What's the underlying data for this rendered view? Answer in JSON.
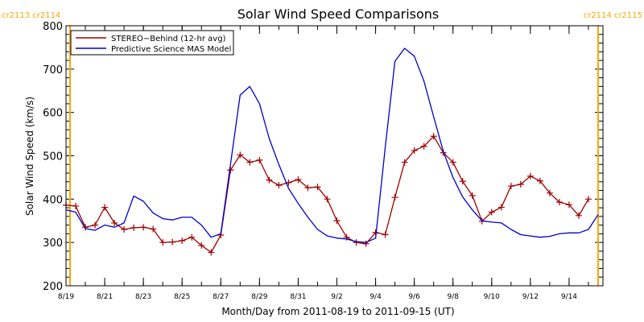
{
  "chart_data": {
    "type": "line",
    "title": "Solar Wind Speed Comparisons",
    "xlabel": "Month/Day from 2011-08-19 to 2011-09-15 (UT)",
    "ylabel": "Solar Wind Speed (km/s)",
    "x_range": [
      "2011-08-19",
      "2011-09-15"
    ],
    "ylim": [
      200,
      800
    ],
    "y_ticks": [
      200,
      300,
      400,
      500,
      600,
      700,
      800
    ],
    "x_ticks": [
      {
        "date": "2011-08-19",
        "label": "8/19"
      },
      {
        "date": "2011-08-21",
        "label": "8/21"
      },
      {
        "date": "2011-08-23",
        "label": "8/23"
      },
      {
        "date": "2011-08-25",
        "label": "8/25"
      },
      {
        "date": "2011-08-27",
        "label": "8/27"
      },
      {
        "date": "2011-08-29",
        "label": "8/29"
      },
      {
        "date": "2011-08-31",
        "label": "8/31"
      },
      {
        "date": "2011-09-02",
        "label": "9/2"
      },
      {
        "date": "2011-09-04",
        "label": "9/4"
      },
      {
        "date": "2011-09-06",
        "label": "9/6"
      },
      {
        "date": "2011-09-08",
        "label": "9/8"
      },
      {
        "date": "2011-09-10",
        "label": "9/10"
      },
      {
        "date": "2011-09-12",
        "label": "9/12"
      },
      {
        "date": "2011-09-14",
        "label": "9/14"
      }
    ],
    "grid": false,
    "legend_position": "top-left",
    "carrington_markers": [
      {
        "date": "2011-08-19T05:00",
        "label": "cr2113 cr2114",
        "side": "left"
      },
      {
        "date": "2011-09-15T12:00",
        "label": "cr2114 cr2115",
        "side": "right"
      }
    ],
    "marker_color": "#ffa500",
    "series": [
      {
        "name": "STEREO−Behind (12-hr avg)",
        "color": "#a00000",
        "marker": "plus",
        "x": [
          "2011-08-19T00:00",
          "2011-08-19T12:00",
          "2011-08-20T00:00",
          "2011-08-20T12:00",
          "2011-08-21T00:00",
          "2011-08-21T12:00",
          "2011-08-22T00:00",
          "2011-08-22T12:00",
          "2011-08-23T00:00",
          "2011-08-23T12:00",
          "2011-08-24T00:00",
          "2011-08-24T12:00",
          "2011-08-25T00:00",
          "2011-08-25T12:00",
          "2011-08-26T00:00",
          "2011-08-26T12:00",
          "2011-08-27T00:00",
          "2011-08-27T12:00",
          "2011-08-28T00:00",
          "2011-08-28T12:00",
          "2011-08-29T00:00",
          "2011-08-29T12:00",
          "2011-08-30T00:00",
          "2011-08-30T12:00",
          "2011-08-31T00:00",
          "2011-08-31T12:00",
          "2011-09-01T00:00",
          "2011-09-01T12:00",
          "2011-09-02T00:00",
          "2011-09-02T12:00",
          "2011-09-03T00:00",
          "2011-09-03T12:00",
          "2011-09-04T00:00",
          "2011-09-04T12:00",
          "2011-09-05T00:00",
          "2011-09-05T12:00",
          "2011-09-06T00:00",
          "2011-09-06T12:00",
          "2011-09-07T00:00",
          "2011-09-07T12:00",
          "2011-09-08T00:00",
          "2011-09-08T12:00",
          "2011-09-09T00:00",
          "2011-09-09T12:00",
          "2011-09-10T00:00",
          "2011-09-10T12:00",
          "2011-09-11T00:00",
          "2011-09-11T12:00",
          "2011-09-12T00:00",
          "2011-09-12T12:00",
          "2011-09-13T00:00",
          "2011-09-13T12:00",
          "2011-09-14T00:00",
          "2011-09-14T12:00",
          "2011-09-15T00:00"
        ],
        "values": [
          386,
          384,
          335,
          340,
          381,
          345,
          330,
          334,
          335,
          331,
          300,
          301,
          304,
          312,
          293,
          277,
          317,
          467,
          502,
          485,
          490,
          444,
          432,
          438,
          445,
          426,
          428,
          400,
          350,
          312,
          300,
          297,
          323,
          318,
          404,
          485,
          512,
          522,
          545,
          507,
          485,
          441,
          408,
          349,
          370,
          381,
          430,
          434,
          453,
          442,
          414,
          393,
          387,
          362,
          400
        ]
      },
      {
        "name": "Predictive Science MAS Model",
        "color": "#0000c8",
        "marker": "none",
        "x": [
          "2011-08-19T00:00",
          "2011-08-19T12:00",
          "2011-08-20T00:00",
          "2011-08-20T12:00",
          "2011-08-21T00:00",
          "2011-08-21T12:00",
          "2011-08-22T00:00",
          "2011-08-22T12:00",
          "2011-08-23T00:00",
          "2011-08-23T12:00",
          "2011-08-24T00:00",
          "2011-08-24T12:00",
          "2011-08-25T00:00",
          "2011-08-25T12:00",
          "2011-08-26T00:00",
          "2011-08-26T12:00",
          "2011-08-27T00:00",
          "2011-08-27T12:00",
          "2011-08-28T00:00",
          "2011-08-28T12:00",
          "2011-08-29T00:00",
          "2011-08-29T12:00",
          "2011-08-30T00:00",
          "2011-08-30T12:00",
          "2011-08-31T00:00",
          "2011-08-31T12:00",
          "2011-09-01T00:00",
          "2011-09-01T12:00",
          "2011-09-02T00:00",
          "2011-09-02T12:00",
          "2011-09-03T00:00",
          "2011-09-03T12:00",
          "2011-09-04T00:00",
          "2011-09-04T12:00",
          "2011-09-05T00:00",
          "2011-09-05T12:00",
          "2011-09-06T00:00",
          "2011-09-06T12:00",
          "2011-09-07T00:00",
          "2011-09-07T12:00",
          "2011-09-08T00:00",
          "2011-09-08T12:00",
          "2011-09-09T00:00",
          "2011-09-09T12:00",
          "2011-09-10T00:00",
          "2011-09-10T12:00",
          "2011-09-11T00:00",
          "2011-09-11T12:00",
          "2011-09-12T00:00",
          "2011-09-12T12:00",
          "2011-09-13T00:00",
          "2011-09-13T12:00",
          "2011-09-14T00:00",
          "2011-09-14T12:00",
          "2011-09-15T00:00",
          "2011-09-15T12:00"
        ],
        "values": [
          375,
          370,
          332,
          328,
          340,
          335,
          345,
          407,
          395,
          368,
          355,
          352,
          358,
          358,
          340,
          312,
          320,
          480,
          640,
          660,
          620,
          540,
          480,
          425,
          390,
          358,
          330,
          315,
          310,
          308,
          302,
          300,
          310,
          520,
          718,
          748,
          730,
          672,
          590,
          510,
          450,
          405,
          375,
          350,
          347,
          345,
          330,
          318,
          315,
          312,
          314,
          320,
          322,
          322,
          330,
          364
        ]
      }
    ]
  }
}
